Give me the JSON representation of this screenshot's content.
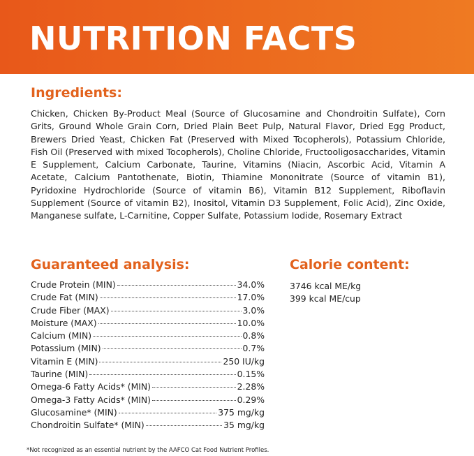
{
  "header": {
    "title": "NUTRITION FACTS"
  },
  "ingredients": {
    "heading": "Ingredients:",
    "text": "Chicken, Chicken By-Product Meal (Source of Glucosamine and Chondroitin Sulfate), Corn Grits, Ground Whole Grain Corn, Dried Plain Beet Pulp, Natural Flavor, Dried Egg Product, Brewers Dried Yeast, Chicken Fat (Preserved with Mixed Tocopherols), Potassium Chloride, Fish Oil (Preserved with mixed Tocopherols), Choline Chloride, Fructooligosaccharides, Vitamin E Supplement, Calcium Carbonate, Taurine, Vitamins (Niacin, Ascorbic Acid, Vitamin A Acetate, Calcium Pantothenate, Biotin, Thiamine Mononitrate (Source of vitamin B1), Pyridoxine Hydrochloride (Source of vitamin B6), Vitamin B12 Supplement, Riboflavin Supplement (Source of vitamin B2), Inositol, Vitamin D3 Supplement, Folic Acid), Zinc Oxide, Manganese sulfate, L-Carnitine, Copper Sulfate, Potassium Iodide, Rosemary Extract"
  },
  "guaranteed_analysis": {
    "heading": "Guaranteed analysis:",
    "rows": [
      {
        "label": "Crude Protein (MIN)",
        "value": "34.0%"
      },
      {
        "label": "Crude Fat (MIN)",
        "value": "17.0%"
      },
      {
        "label": "Crude Fiber (MAX)",
        "value": "3.0%"
      },
      {
        "label": "Moisture (MAX)",
        "value": "10.0%"
      },
      {
        "label": "Calcium (MIN)",
        "value": "0.8%"
      },
      {
        "label": "Potassium (MIN)",
        "value": "0.7%"
      },
      {
        "label": "Vitamin E (MIN)",
        "value": "250 IU/kg"
      },
      {
        "label": "Taurine (MIN)",
        "value": "0.15%"
      },
      {
        "label": "Omega-6 Fatty Acids* (MIN)",
        "value": "2.28%"
      },
      {
        "label": "Omega-3 Fatty Acids* (MIN)",
        "value": "0.29%"
      },
      {
        "label": "Glucosamine* (MIN)",
        "value": "375 mg/kg"
      },
      {
        "label": "Chondroitin Sulfate* (MIN)",
        "value": "35 mg/kg"
      }
    ]
  },
  "calorie_content": {
    "heading": "Calorie content:",
    "lines": [
      "3746 kcal ME/kg",
      "399 kcal ME/cup"
    ]
  },
  "footnote": "*Not recognized as an essential nutrient by the AAFCO Cat Food Nutrient Profiles."
}
